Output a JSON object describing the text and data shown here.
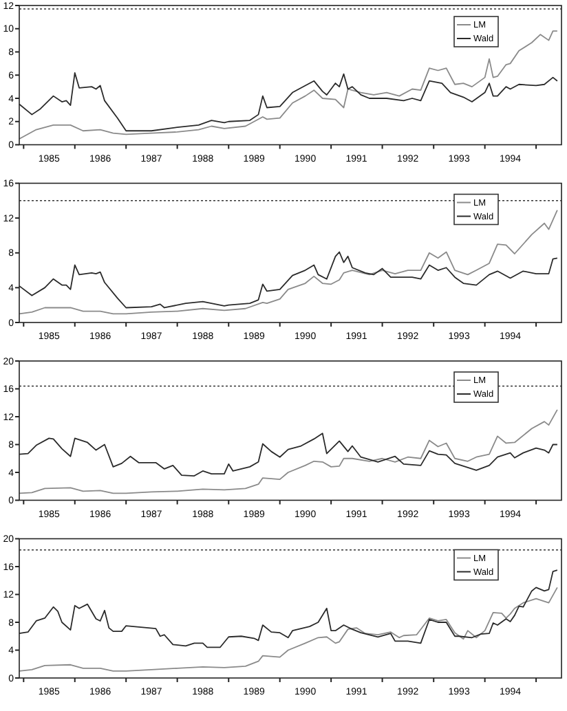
{
  "chart_data": [
    {
      "type": "line",
      "xlim": [
        "1984-12",
        "1995-07"
      ],
      "ylim": [
        0,
        12
      ],
      "yticks": [
        0,
        2,
        4,
        6,
        8,
        10,
        12
      ],
      "legend": "top right",
      "grid": false,
      "line_style": "solid",
      "xticks": [
        {
          "value": "1985-01",
          "label": null
        },
        {
          "value": "1985-07",
          "label": "1985"
        },
        {
          "value": "1986-01",
          "label": null
        },
        {
          "value": "1986-07",
          "label": "1986"
        },
        {
          "value": "1987-01",
          "label": null
        },
        {
          "value": "1987-07",
          "label": "1987"
        },
        {
          "value": "1988-01",
          "label": null
        },
        {
          "value": "1988-07",
          "label": "1988"
        },
        {
          "value": "1989-01",
          "label": null
        },
        {
          "value": "1989-07",
          "label": "1989"
        },
        {
          "value": "1990-01",
          "label": null
        },
        {
          "value": "1990-07",
          "label": "1990"
        },
        {
          "value": "1991-01",
          "label": null
        },
        {
          "value": "1991-07",
          "label": "1991"
        },
        {
          "value": "1992-01",
          "label": null
        },
        {
          "value": "1992-07",
          "label": "1992"
        },
        {
          "value": "1993-01",
          "label": null
        },
        {
          "value": "1993-07",
          "label": "1993"
        },
        {
          "value": "1994-01",
          "label": null
        },
        {
          "value": "1994-07",
          "label": "1994"
        },
        {
          "value": "1995-01",
          "label": null
        }
      ],
      "ref_lines": [
        {
          "axis": "y",
          "value": 11.7,
          "label": null,
          "line_style": "dotted",
          "color": "#333333"
        }
      ],
      "series": [
        {
          "name": "LM",
          "color": "#8a8a8a",
          "x": [
            "1984-12",
            "1985-04",
            "1985-08",
            "1985-12",
            "1986-03",
            "1986-07",
            "1986-10",
            "1987-01",
            "1987-07",
            "1988-01",
            "1988-06",
            "1988-09",
            "1988-12",
            "1989-05",
            "1989-09",
            "1989-10",
            "1990-01",
            "1990-04",
            "1990-07",
            "1990-09",
            "1990-11",
            "1991-02",
            "1991-04",
            "1991-05",
            "1991-08",
            "1991-11",
            "1992-02",
            "1992-05",
            "1992-08",
            "1992-10",
            "1992-12",
            "1993-02",
            "1993-04",
            "1993-06",
            "1993-08",
            "1993-10",
            "1994-01",
            "1994-02",
            "1994-03",
            "1994-04",
            "1994-06",
            "1994-07",
            "1994-09",
            "1994-12",
            "1995-02",
            "1995-04",
            "1995-05",
            "1995-06"
          ],
          "values": [
            0.5,
            1.3,
            1.7,
            1.7,
            1.2,
            1.3,
            1.0,
            0.9,
            1.0,
            1.1,
            1.3,
            1.6,
            1.4,
            1.6,
            2.4,
            2.2,
            2.3,
            3.6,
            4.2,
            4.7,
            4.0,
            3.9,
            3.2,
            4.8,
            4.5,
            4.3,
            4.5,
            4.2,
            4.8,
            4.7,
            6.6,
            6.4,
            6.6,
            5.2,
            5.3,
            5.0,
            5.8,
            7.4,
            5.8,
            5.9,
            6.9,
            7.0,
            8.1,
            8.8,
            9.5,
            9.0,
            9.8,
            9.8
          ]
        },
        {
          "name": "Wald",
          "color": "#2a2a2a",
          "x": [
            "1984-12",
            "1985-03",
            "1985-05",
            "1985-08",
            "1985-10",
            "1985-11",
            "1985-12",
            "1986-01",
            "1986-02",
            "1986-05",
            "1986-06",
            "1986-07",
            "1986-08",
            "1986-11",
            "1987-01",
            "1987-07",
            "1988-01",
            "1988-06",
            "1988-09",
            "1988-12",
            "1989-01",
            "1989-06",
            "1989-08",
            "1989-09",
            "1989-10",
            "1990-01",
            "1990-04",
            "1990-07",
            "1990-09",
            "1990-11",
            "1990-12",
            "1991-02",
            "1991-03",
            "1991-04",
            "1991-05",
            "1991-06",
            "1991-08",
            "1991-10",
            "1992-02",
            "1992-06",
            "1992-08",
            "1992-10",
            "1992-12",
            "1993-03",
            "1993-05",
            "1993-08",
            "1993-10",
            "1994-01",
            "1994-02",
            "1994-03",
            "1994-04",
            "1994-06",
            "1994-07",
            "1994-09",
            "1995-01",
            "1995-03",
            "1995-05",
            "1995-06"
          ],
          "values": [
            3.5,
            2.6,
            3.1,
            4.2,
            3.7,
            3.8,
            3.4,
            6.2,
            4.9,
            5.0,
            4.8,
            5.1,
            3.8,
            2.3,
            1.2,
            1.2,
            1.5,
            1.7,
            2.1,
            1.9,
            2.0,
            2.1,
            2.6,
            4.2,
            3.2,
            3.3,
            4.5,
            5.1,
            5.5,
            4.6,
            4.3,
            5.3,
            5.0,
            6.1,
            4.8,
            5.0,
            4.3,
            4.0,
            4.0,
            3.8,
            4.0,
            3.8,
            5.5,
            5.3,
            4.5,
            4.1,
            3.7,
            4.5,
            5.3,
            4.2,
            4.2,
            5.0,
            4.8,
            5.2,
            5.1,
            5.2,
            5.8,
            5.5
          ]
        }
      ]
    },
    {
      "type": "line",
      "xlim": [
        "1984-12",
        "1995-07"
      ],
      "ylim": [
        0,
        16
      ],
      "yticks": [
        0,
        4,
        8,
        12,
        16
      ],
      "legend": "top right",
      "grid": false,
      "line_style": "solid",
      "xticks": [
        {
          "value": "1985-01",
          "label": null
        },
        {
          "value": "1985-07",
          "label": "1985"
        },
        {
          "value": "1986-01",
          "label": null
        },
        {
          "value": "1986-07",
          "label": "1986"
        },
        {
          "value": "1987-01",
          "label": null
        },
        {
          "value": "1987-07",
          "label": "1987"
        },
        {
          "value": "1988-01",
          "label": null
        },
        {
          "value": "1988-07",
          "label": "1988"
        },
        {
          "value": "1989-01",
          "label": null
        },
        {
          "value": "1989-07",
          "label": "1989"
        },
        {
          "value": "1990-01",
          "label": null
        },
        {
          "value": "1990-07",
          "label": "1990"
        },
        {
          "value": "1991-01",
          "label": null
        },
        {
          "value": "1991-07",
          "label": "1991"
        },
        {
          "value": "1992-01",
          "label": null
        },
        {
          "value": "1992-07",
          "label": "1992"
        },
        {
          "value": "1993-01",
          "label": null
        },
        {
          "value": "1993-07",
          "label": "1993"
        },
        {
          "value": "1994-01",
          "label": null
        },
        {
          "value": "1994-07",
          "label": "1994"
        },
        {
          "value": "1995-01",
          "label": null
        }
      ],
      "ref_lines": [
        {
          "axis": "y",
          "value": 14.0,
          "label": null,
          "line_style": "dotted",
          "color": "#333333"
        }
      ],
      "series": [
        {
          "name": "LM",
          "color": "#8a8a8a",
          "x": [
            "1984-12",
            "1985-03",
            "1985-06",
            "1985-12",
            "1986-03",
            "1986-07",
            "1986-10",
            "1987-01",
            "1987-07",
            "1988-01",
            "1988-07",
            "1988-12",
            "1989-05",
            "1989-09",
            "1989-10",
            "1990-01",
            "1990-03",
            "1990-07",
            "1990-09",
            "1990-11",
            "1991-01",
            "1991-03",
            "1991-04",
            "1991-06",
            "1991-10",
            "1992-01",
            "1992-04",
            "1992-07",
            "1992-10",
            "1992-12",
            "1993-02",
            "1993-04",
            "1993-06",
            "1993-09",
            "1993-11",
            "1994-02",
            "1994-04",
            "1994-06",
            "1994-08",
            "1994-12",
            "1995-03",
            "1995-04",
            "1995-06"
          ],
          "values": [
            1.0,
            1.2,
            1.7,
            1.7,
            1.3,
            1.3,
            1.0,
            1.0,
            1.2,
            1.3,
            1.6,
            1.4,
            1.6,
            2.3,
            2.2,
            2.7,
            3.8,
            4.5,
            5.3,
            4.5,
            4.4,
            4.9,
            5.7,
            6.0,
            5.5,
            6.0,
            5.6,
            6.0,
            6.0,
            8.0,
            7.4,
            8.1,
            6.0,
            5.5,
            6.0,
            6.8,
            9.0,
            8.9,
            7.9,
            10.1,
            11.4,
            10.7,
            12.9
          ]
        },
        {
          "name": "Wald",
          "color": "#2a2a2a",
          "x": [
            "1984-12",
            "1985-03",
            "1985-06",
            "1985-08",
            "1985-10",
            "1985-11",
            "1985-12",
            "1986-01",
            "1986-02",
            "1986-05",
            "1986-06",
            "1986-07",
            "1986-08",
            "1986-11",
            "1987-01",
            "1987-07",
            "1987-09",
            "1987-10",
            "1988-03",
            "1988-07",
            "1988-12",
            "1989-01",
            "1989-06",
            "1989-08",
            "1989-09",
            "1989-10",
            "1990-01",
            "1990-04",
            "1990-07",
            "1990-09",
            "1990-10",
            "1990-12",
            "1991-02",
            "1991-03",
            "1991-04",
            "1991-05",
            "1991-06",
            "1991-09",
            "1991-11",
            "1992-01",
            "1992-03",
            "1992-08",
            "1992-10",
            "1992-12",
            "1993-02",
            "1993-04",
            "1993-06",
            "1993-08",
            "1993-11",
            "1994-02",
            "1994-04",
            "1994-07",
            "1994-10",
            "1995-01",
            "1995-04",
            "1995-05",
            "1995-06"
          ],
          "values": [
            4.2,
            3.1,
            4.0,
            5.0,
            4.3,
            4.3,
            3.8,
            6.6,
            5.5,
            5.7,
            5.6,
            5.8,
            4.6,
            2.8,
            1.7,
            1.8,
            2.1,
            1.7,
            2.2,
            2.4,
            1.9,
            2.0,
            2.2,
            2.6,
            4.4,
            3.6,
            3.8,
            5.4,
            6.0,
            6.6,
            5.5,
            5.0,
            7.6,
            8.1,
            6.9,
            7.6,
            6.3,
            5.7,
            5.5,
            6.2,
            5.2,
            5.2,
            5.0,
            6.6,
            6.0,
            6.3,
            5.2,
            4.5,
            4.3,
            5.5,
            5.9,
            5.1,
            5.9,
            5.6,
            5.6,
            7.3,
            7.4
          ]
        }
      ]
    },
    {
      "type": "line",
      "xlim": [
        "1984-12",
        "1995-07"
      ],
      "ylim": [
        0,
        20
      ],
      "yticks": [
        0,
        4,
        8,
        12,
        16,
        20
      ],
      "legend": "top right",
      "grid": false,
      "line_style": "solid",
      "xticks": [
        {
          "value": "1985-01",
          "label": null
        },
        {
          "value": "1985-07",
          "label": "1985"
        },
        {
          "value": "1986-01",
          "label": null
        },
        {
          "value": "1986-07",
          "label": "1986"
        },
        {
          "value": "1987-01",
          "label": null
        },
        {
          "value": "1987-07",
          "label": "1987"
        },
        {
          "value": "1988-01",
          "label": null
        },
        {
          "value": "1988-07",
          "label": "1988"
        },
        {
          "value": "1989-01",
          "label": null
        },
        {
          "value": "1989-07",
          "label": "1989"
        },
        {
          "value": "1990-01",
          "label": null
        },
        {
          "value": "1990-07",
          "label": "1990"
        },
        {
          "value": "1991-01",
          "label": null
        },
        {
          "value": "1991-07",
          "label": "1991"
        },
        {
          "value": "1992-01",
          "label": null
        },
        {
          "value": "1992-07",
          "label": "1992"
        },
        {
          "value": "1993-01",
          "label": null
        },
        {
          "value": "1993-07",
          "label": "1993"
        },
        {
          "value": "1994-01",
          "label": null
        },
        {
          "value": "1994-07",
          "label": "1994"
        },
        {
          "value": "1995-01",
          "label": null
        }
      ],
      "ref_lines": [
        {
          "axis": "y",
          "value": 16.4,
          "label": null,
          "line_style": "dotted",
          "color": "#333333"
        }
      ],
      "series": [
        {
          "name": "LM",
          "color": "#8a8a8a",
          "x": [
            "1984-12",
            "1985-03",
            "1985-06",
            "1985-12",
            "1986-03",
            "1986-07",
            "1986-10",
            "1987-01",
            "1987-07",
            "1988-01",
            "1988-07",
            "1988-12",
            "1989-05",
            "1989-08",
            "1989-09",
            "1990-01",
            "1990-03",
            "1990-07",
            "1990-09",
            "1990-11",
            "1991-01",
            "1991-03",
            "1991-04",
            "1991-06",
            "1991-10",
            "1992-01",
            "1992-04",
            "1992-07",
            "1992-10",
            "1992-12",
            "1993-02",
            "1993-04",
            "1993-06",
            "1993-09",
            "1993-11",
            "1994-02",
            "1994-04",
            "1994-06",
            "1994-08",
            "1994-12",
            "1995-03",
            "1995-04",
            "1995-06"
          ],
          "values": [
            1.0,
            1.1,
            1.7,
            1.8,
            1.3,
            1.4,
            1.0,
            1.0,
            1.2,
            1.3,
            1.6,
            1.5,
            1.7,
            2.3,
            3.2,
            3.0,
            4.0,
            5.0,
            5.6,
            5.5,
            4.8,
            4.9,
            6.0,
            6.0,
            5.6,
            6.0,
            5.5,
            6.2,
            6.0,
            8.6,
            7.7,
            8.2,
            6.0,
            5.6,
            6.2,
            6.6,
            9.2,
            8.2,
            8.3,
            10.3,
            11.3,
            10.8,
            13.0
          ]
        },
        {
          "name": "Wald",
          "color": "#2a2a2a",
          "x": [
            "1984-12",
            "1985-02",
            "1985-04",
            "1985-07",
            "1985-08",
            "1985-10",
            "1985-12",
            "1986-01",
            "1986-04",
            "1986-06",
            "1986-08",
            "1986-10",
            "1986-12",
            "1987-02",
            "1987-04",
            "1987-08",
            "1987-10",
            "1987-12",
            "1988-02",
            "1988-05",
            "1988-07",
            "1988-09",
            "1988-12",
            "1989-01",
            "1989-02",
            "1989-06",
            "1989-08",
            "1989-09",
            "1989-11",
            "1990-01",
            "1990-03",
            "1990-06",
            "1990-09",
            "1990-11",
            "1990-12",
            "1991-03",
            "1991-05",
            "1991-06",
            "1991-08",
            "1991-12",
            "1992-04",
            "1992-06",
            "1992-10",
            "1992-12",
            "1993-02",
            "1993-04",
            "1993-06",
            "1993-09",
            "1993-11",
            "1994-02",
            "1994-04",
            "1994-07",
            "1994-08",
            "1994-10",
            "1995-01",
            "1995-03",
            "1995-04",
            "1995-05",
            "1995-06"
          ],
          "values": [
            6.6,
            6.7,
            7.9,
            8.9,
            8.8,
            7.4,
            6.3,
            8.9,
            8.3,
            7.2,
            8.0,
            4.8,
            5.3,
            6.3,
            5.4,
            5.4,
            4.5,
            5.0,
            3.6,
            3.5,
            4.2,
            3.8,
            3.8,
            5.2,
            4.2,
            4.8,
            5.5,
            8.1,
            7.0,
            6.2,
            7.3,
            7.8,
            8.8,
            9.6,
            6.7,
            8.5,
            7.0,
            7.8,
            6.2,
            5.5,
            6.3,
            5.2,
            5.0,
            7.1,
            6.6,
            6.5,
            5.3,
            4.7,
            4.3,
            5.0,
            6.2,
            6.8,
            6.1,
            6.8,
            7.5,
            7.2,
            6.8,
            8.0,
            8.0
          ]
        }
      ]
    },
    {
      "type": "line",
      "xlim": [
        "1984-12",
        "1995-07"
      ],
      "ylim": [
        0,
        20
      ],
      "yticks": [
        0,
        4,
        8,
        12,
        16,
        20
      ],
      "legend": "top right",
      "grid": false,
      "line_style": "solid",
      "xticks": [
        {
          "value": "1985-01",
          "label": null
        },
        {
          "value": "1985-07",
          "label": "1985"
        },
        {
          "value": "1986-01",
          "label": null
        },
        {
          "value": "1986-07",
          "label": "1986"
        },
        {
          "value": "1987-01",
          "label": null
        },
        {
          "value": "1987-07",
          "label": "1987"
        },
        {
          "value": "1988-01",
          "label": null
        },
        {
          "value": "1988-07",
          "label": "1988"
        },
        {
          "value": "1989-01",
          "label": null
        },
        {
          "value": "1989-07",
          "label": "1989"
        },
        {
          "value": "1990-01",
          "label": null
        },
        {
          "value": "1990-07",
          "label": "1990"
        },
        {
          "value": "1991-01",
          "label": null
        },
        {
          "value": "1991-07",
          "label": "1991"
        },
        {
          "value": "1992-01",
          "label": null
        },
        {
          "value": "1992-07",
          "label": "1992"
        },
        {
          "value": "1993-01",
          "label": null
        },
        {
          "value": "1993-07",
          "label": "1993"
        },
        {
          "value": "1994-01",
          "label": null
        },
        {
          "value": "1994-07",
          "label": "1994"
        },
        {
          "value": "1995-01",
          "label": null
        }
      ],
      "ref_lines": [
        {
          "axis": "y",
          "value": 18.4,
          "label": null,
          "line_style": "dotted",
          "color": "#333333"
        }
      ],
      "series": [
        {
          "name": "LM",
          "color": "#8a8a8a",
          "x": [
            "1984-12",
            "1985-03",
            "1985-06",
            "1985-12",
            "1986-03",
            "1986-07",
            "1986-10",
            "1987-01",
            "1987-07",
            "1988-01",
            "1988-07",
            "1988-12",
            "1989-05",
            "1989-08",
            "1989-09",
            "1990-01",
            "1990-03",
            "1990-07",
            "1990-10",
            "1990-12",
            "1991-02",
            "1991-03",
            "1991-05",
            "1991-07",
            "1991-09",
            "1991-12",
            "1992-03",
            "1992-05",
            "1992-06",
            "1992-09",
            "1992-12",
            "1993-02",
            "1993-04",
            "1993-06",
            "1993-08",
            "1993-09",
            "1993-11",
            "1994-01",
            "1994-03",
            "1994-05",
            "1994-06",
            "1994-07",
            "1994-08",
            "1994-10",
            "1995-01",
            "1995-04",
            "1995-06"
          ],
          "values": [
            1.0,
            1.2,
            1.8,
            1.9,
            1.4,
            1.4,
            1.0,
            1.0,
            1.2,
            1.4,
            1.6,
            1.5,
            1.7,
            2.4,
            3.2,
            3.0,
            4.0,
            5.0,
            5.8,
            5.9,
            5.0,
            5.2,
            7.0,
            7.2,
            6.4,
            6.2,
            6.6,
            5.8,
            6.1,
            6.2,
            8.6,
            8.2,
            8.4,
            6.5,
            5.6,
            6.8,
            5.8,
            6.8,
            9.4,
            9.3,
            8.6,
            9.2,
            10.0,
            10.8,
            11.4,
            10.8,
            13.0
          ]
        },
        {
          "name": "Wald",
          "color": "#2a2a2a",
          "x": [
            "1984-12",
            "1985-02",
            "1985-04",
            "1985-06",
            "1985-08",
            "1985-09",
            "1985-10",
            "1985-12",
            "1986-01",
            "1986-02",
            "1986-04",
            "1986-06",
            "1986-07",
            "1986-08",
            "1986-09",
            "1986-10",
            "1986-12",
            "1987-01",
            "1987-08",
            "1987-09",
            "1987-10",
            "1987-12",
            "1988-03",
            "1988-05",
            "1988-07",
            "1988-08",
            "1988-11",
            "1989-01",
            "1989-04",
            "1989-07",
            "1989-08",
            "1989-09",
            "1989-11",
            "1990-01",
            "1990-03",
            "1990-04",
            "1990-08",
            "1990-10",
            "1990-12",
            "1991-01",
            "1991-02",
            "1991-04",
            "1991-06",
            "1991-08",
            "1991-12",
            "1992-03",
            "1992-04",
            "1992-07",
            "1992-10",
            "1992-12",
            "1993-02",
            "1993-04",
            "1993-06",
            "1993-07",
            "1993-10",
            "1993-12",
            "1994-02",
            "1994-03",
            "1994-04",
            "1994-06",
            "1994-07",
            "1994-08",
            "1994-09",
            "1994-10",
            "1994-12",
            "1995-01",
            "1995-03",
            "1995-04",
            "1995-05",
            "1995-06"
          ],
          "values": [
            6.4,
            6.6,
            8.2,
            8.6,
            10.2,
            9.6,
            8.0,
            6.9,
            10.4,
            10.0,
            10.6,
            8.5,
            8.2,
            9.7,
            7.2,
            6.7,
            6.7,
            7.5,
            7.1,
            6.0,
            6.2,
            4.8,
            4.6,
            5.0,
            5.0,
            4.4,
            4.4,
            5.9,
            6.0,
            5.7,
            5.4,
            7.6,
            6.6,
            6.5,
            5.8,
            6.8,
            7.4,
            8.0,
            10.0,
            6.8,
            6.8,
            7.6,
            7.0,
            6.5,
            5.9,
            6.4,
            5.3,
            5.3,
            5.0,
            8.4,
            8.0,
            8.0,
            6.0,
            6.0,
            5.8,
            6.3,
            6.4,
            7.9,
            7.6,
            8.5,
            8.1,
            9.0,
            10.3,
            10.2,
            12.5,
            13.0,
            12.5,
            12.7,
            15.3,
            15.5
          ]
        }
      ]
    }
  ]
}
